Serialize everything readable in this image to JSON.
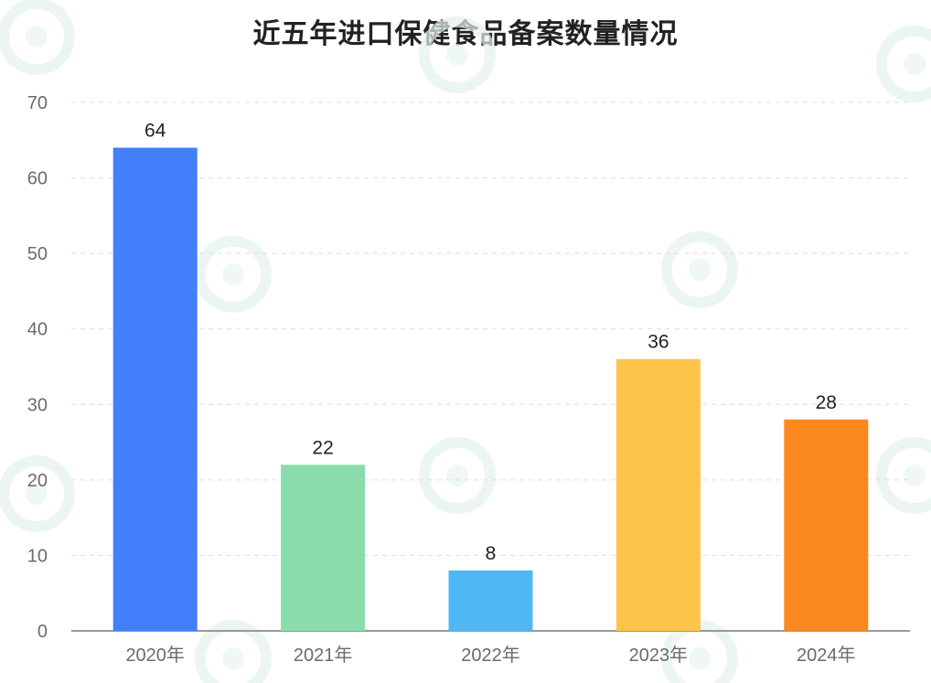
{
  "chart_data": {
    "type": "bar",
    "title": "近五年进口保健食品备案数量情况",
    "categories": [
      "2020年",
      "2021年",
      "2022年",
      "2023年",
      "2024年"
    ],
    "values": [
      64,
      22,
      8,
      36,
      28
    ],
    "data_labels": [
      "64",
      "22",
      "8",
      "36",
      "28"
    ],
    "bar_colors": [
      "#437ffb",
      "#8bdcad",
      "#4fb8f4",
      "#fcc44a",
      "#fb871f"
    ],
    "ylim": [
      0,
      70
    ],
    "yticks": [
      0,
      10,
      20,
      30,
      40,
      50,
      60,
      70
    ],
    "grid": true,
    "legend": "none",
    "xlabel": "",
    "ylabel": ""
  },
  "colors": {
    "axis_text": "#6b6b6b",
    "value_text": "#222222",
    "grid": "#dddddd",
    "axis_line": "#999999"
  }
}
